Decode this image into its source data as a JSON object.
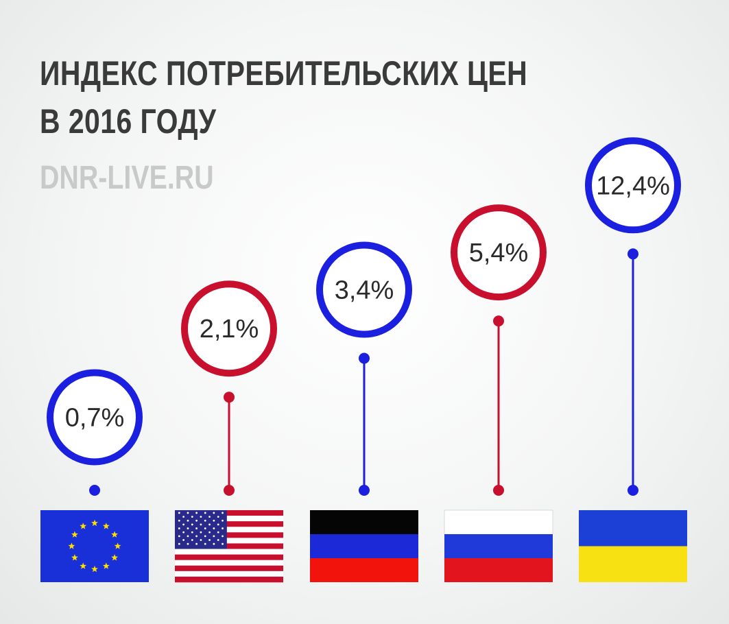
{
  "title_lines": [
    "ИНДЕКС ПОТРЕБИТЕЛЬСКИХ ЦЕН",
    "В 2016 ГОДУ"
  ],
  "source": "DNR-LIVE.RU",
  "colors": {
    "blue": "#1a1fe0",
    "red": "#c8102e",
    "title": "#3a3a3a",
    "source": "#c8c9c9"
  },
  "chart_data": {
    "type": "lollipop",
    "values": [
      0.7,
      2.1,
      3.4,
      5.4,
      12.4
    ],
    "value_labels": [
      "0,7%",
      "2,1%",
      "3,4%",
      "5,4%",
      "12,4%"
    ],
    "categories": [
      {
        "flag": "eu-flag",
        "color": "blue"
      },
      {
        "flag": "usa-flag",
        "color": "red"
      },
      {
        "flag": "dpr-flag",
        "color": "blue"
      },
      {
        "flag": "russia-flag",
        "color": "red"
      },
      {
        "flag": "ukraine-flag",
        "color": "blue"
      }
    ]
  }
}
